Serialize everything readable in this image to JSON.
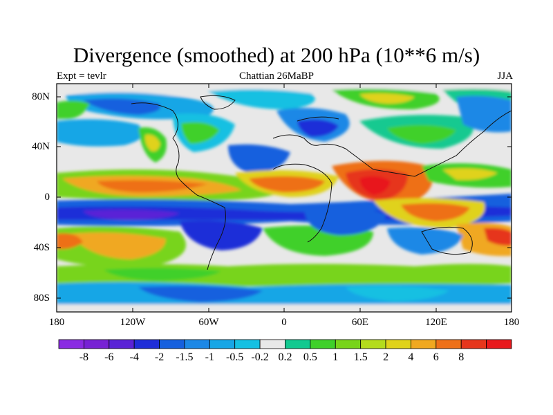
{
  "title": "Divergence (smoothed) at 200 hPa (10**6 m/s)",
  "subtitle_left": "Expt = tevlr",
  "subtitle_center": "Chattian  26MaBP",
  "subtitle_right": "JJA",
  "map": {
    "lat_ticks": [
      "80N",
      "40N",
      "0",
      "40S",
      "80S"
    ],
    "lon_ticks": [
      "180",
      "120W",
      "60W",
      "0",
      "60E",
      "120E",
      "180"
    ]
  },
  "colorbar": {
    "colors": [
      "#8a2be2",
      "#7722d4",
      "#5a23d6",
      "#1f2ed8",
      "#1660de",
      "#1d88e6",
      "#17a6e6",
      "#15c0e2",
      "#e8e8e8",
      "#12c990",
      "#3fd02a",
      "#78d41a",
      "#b4dc1c",
      "#e0d21a",
      "#f0a820",
      "#ee7018",
      "#e6361c",
      "#e8181c"
    ],
    "labels": [
      "-8",
      "-6",
      "-4",
      "-2",
      "-1.5",
      "-1",
      "-0.5",
      "-0.2",
      "0.2",
      "0.5",
      "1",
      "1.5",
      "2",
      "4",
      "6",
      "8"
    ]
  }
}
